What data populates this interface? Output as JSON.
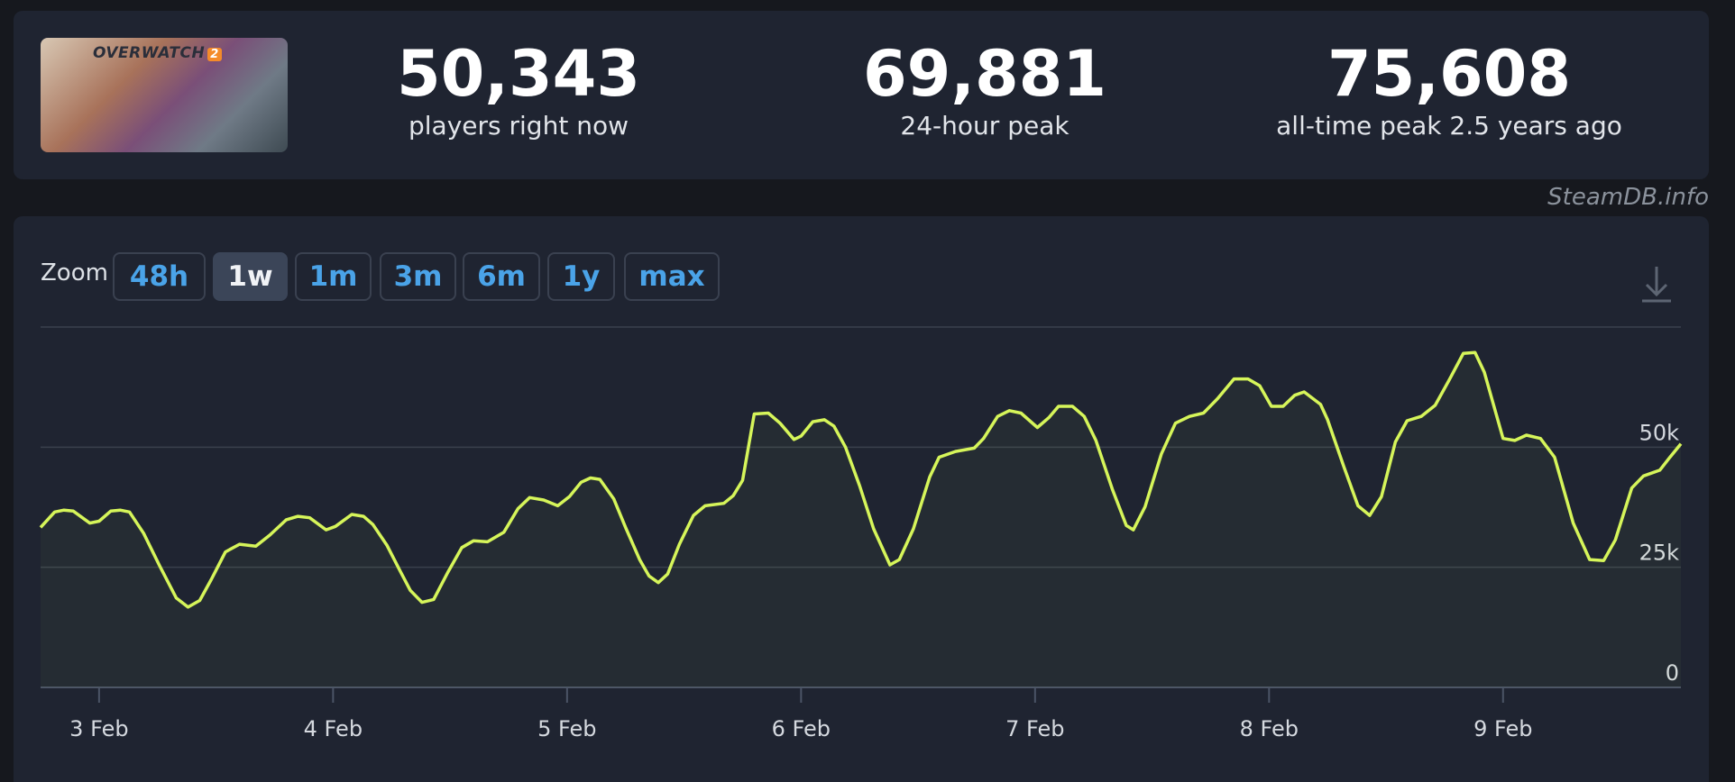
{
  "header": {
    "logo": "OVERWATCH",
    "logo_badge": "2",
    "stats": [
      {
        "value": "50,343",
        "label": "players right now"
      },
      {
        "value": "69,881",
        "label": "24-hour peak"
      },
      {
        "value": "75,608",
        "label": "all-time peak 2.5 years ago"
      }
    ]
  },
  "watermark": "SteamDB.info",
  "zoom": {
    "label": "Zoom",
    "options": [
      "48h",
      "1w",
      "1m",
      "3m",
      "6m",
      "1y",
      "max"
    ],
    "selected": "1w"
  },
  "chart_data": {
    "type": "line",
    "x": [
      2.75,
      2.81,
      2.85,
      2.89,
      2.96,
      3.0,
      3.05,
      3.09,
      3.13,
      3.19,
      3.26,
      3.33,
      3.38,
      3.43,
      3.48,
      3.54,
      3.6,
      3.67,
      3.73,
      3.8,
      3.85,
      3.9,
      3.97,
      4.01,
      4.08,
      4.13,
      4.17,
      4.23,
      4.29,
      4.33,
      4.38,
      4.43,
      4.49,
      4.55,
      4.6,
      4.66,
      4.73,
      4.79,
      4.84,
      4.9,
      4.96,
      5.01,
      5.06,
      5.1,
      5.14,
      5.2,
      5.25,
      5.31,
      5.35,
      5.39,
      5.43,
      5.48,
      5.54,
      5.59,
      5.67,
      5.71,
      5.75,
      5.8,
      5.86,
      5.91,
      5.97,
      6.0,
      6.05,
      6.1,
      6.14,
      6.19,
      6.25,
      6.31,
      6.38,
      6.42,
      6.48,
      6.55,
      6.59,
      6.66,
      6.74,
      6.78,
      6.84,
      6.89,
      6.94,
      7.01,
      7.06,
      7.1,
      7.16,
      7.21,
      7.26,
      7.33,
      7.39,
      7.42,
      7.47,
      7.54,
      7.6,
      7.66,
      7.72,
      7.78,
      7.85,
      7.91,
      7.96,
      8.01,
      8.06,
      8.11,
      8.15,
      8.22,
      8.25,
      8.32,
      8.38,
      8.43,
      8.48,
      8.54,
      8.59,
      8.65,
      8.71,
      8.77,
      8.83,
      8.88,
      8.92,
      9.0,
      9.05,
      9.1,
      9.16,
      9.22,
      9.3,
      9.37,
      9.43,
      9.48,
      9.55,
      9.6,
      9.67,
      9.71,
      9.76
    ],
    "series": [
      {
        "name": "Players",
        "color": "#d6f55a",
        "values": [
          33300,
          36500,
          36900,
          36700,
          34200,
          34600,
          36700,
          36900,
          36500,
          32100,
          25200,
          18600,
          16700,
          18100,
          22500,
          28200,
          29800,
          29400,
          31700,
          34900,
          35600,
          35300,
          32800,
          33500,
          36000,
          35600,
          33900,
          29600,
          23900,
          20200,
          17700,
          18300,
          23900,
          29100,
          30500,
          30300,
          32300,
          37200,
          39500,
          39000,
          37800,
          39700,
          42700,
          43600,
          43300,
          39200,
          33300,
          26600,
          23200,
          21800,
          23600,
          29800,
          35800,
          37800,
          38300,
          39900,
          43100,
          56900,
          57100,
          55000,
          51600,
          52300,
          55300,
          55700,
          54400,
          50000,
          42000,
          33000,
          25500,
          26600,
          33000,
          43800,
          47900,
          49100,
          49800,
          51800,
          56400,
          57600,
          57100,
          54100,
          56200,
          58500,
          58500,
          56400,
          51400,
          41300,
          33700,
          32800,
          37600,
          48600,
          55000,
          56400,
          57100,
          60100,
          64200,
          64200,
          62800,
          58500,
          58500,
          60800,
          61500,
          58900,
          55700,
          45900,
          37800,
          35800,
          39700,
          51100,
          55500,
          56400,
          58700,
          64000,
          69500,
          69700,
          65600,
          51800,
          51400,
          52500,
          51800,
          47900,
          34200,
          26600,
          26400,
          30700,
          41500,
          44000,
          45200,
          47700,
          50700
        ]
      }
    ],
    "xlim": [
      2.75,
      9.76
    ],
    "xticks": [
      {
        "value": 3,
        "label": "3 Feb"
      },
      {
        "value": 4,
        "label": "4 Feb"
      },
      {
        "value": 5,
        "label": "5 Feb"
      },
      {
        "value": 6,
        "label": "6 Feb"
      },
      {
        "value": 7,
        "label": "7 Feb"
      },
      {
        "value": 8,
        "label": "8 Feb"
      },
      {
        "value": 9,
        "label": "9 Feb"
      }
    ],
    "ylim": [
      0,
      75000
    ],
    "yticks": [
      0,
      {
        "value": 25000,
        "label": "25k"
      },
      {
        "value": 50000,
        "label": "50k"
      }
    ],
    "grid": true
  }
}
